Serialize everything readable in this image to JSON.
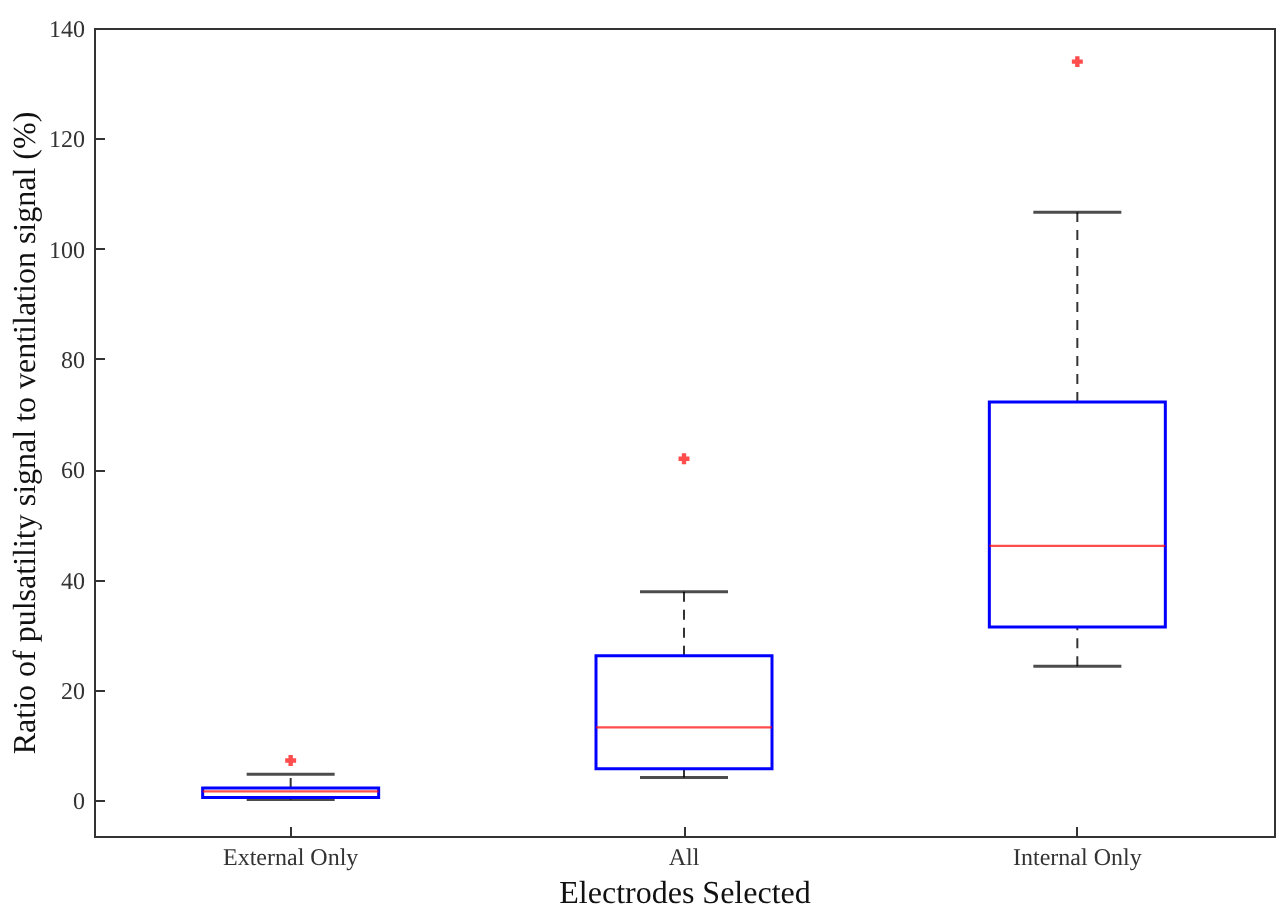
{
  "chart_data": {
    "type": "box",
    "xlabel": "Electrodes Selected",
    "ylabel": "Ratio of pulsatility signal to ventilation signal (%)",
    "categories": [
      "External Only",
      "All",
      "Internal Only"
    ],
    "ylim": [
      -6.5,
      140
    ],
    "yticks": [
      0,
      20,
      40,
      60,
      80,
      100,
      120,
      140
    ],
    "grid": false,
    "series": [
      {
        "color": "#0000ff",
        "boxes": [
          {
            "low": 0.1,
            "q1": 0.5,
            "median": 1.6,
            "q3": 2.2,
            "high": 4.7,
            "outliers": [
              7.2
            ]
          },
          {
            "low": 4.1,
            "q1": 5.7,
            "median": 13.2,
            "q3": 26.2,
            "high": 37.8,
            "outliers": [
              61.9
            ]
          },
          {
            "low": 24.3,
            "q1": 31.4,
            "median": 46.1,
            "q3": 72.2,
            "high": 106.6,
            "outliers": [
              133.9
            ]
          }
        ]
      }
    ]
  }
}
